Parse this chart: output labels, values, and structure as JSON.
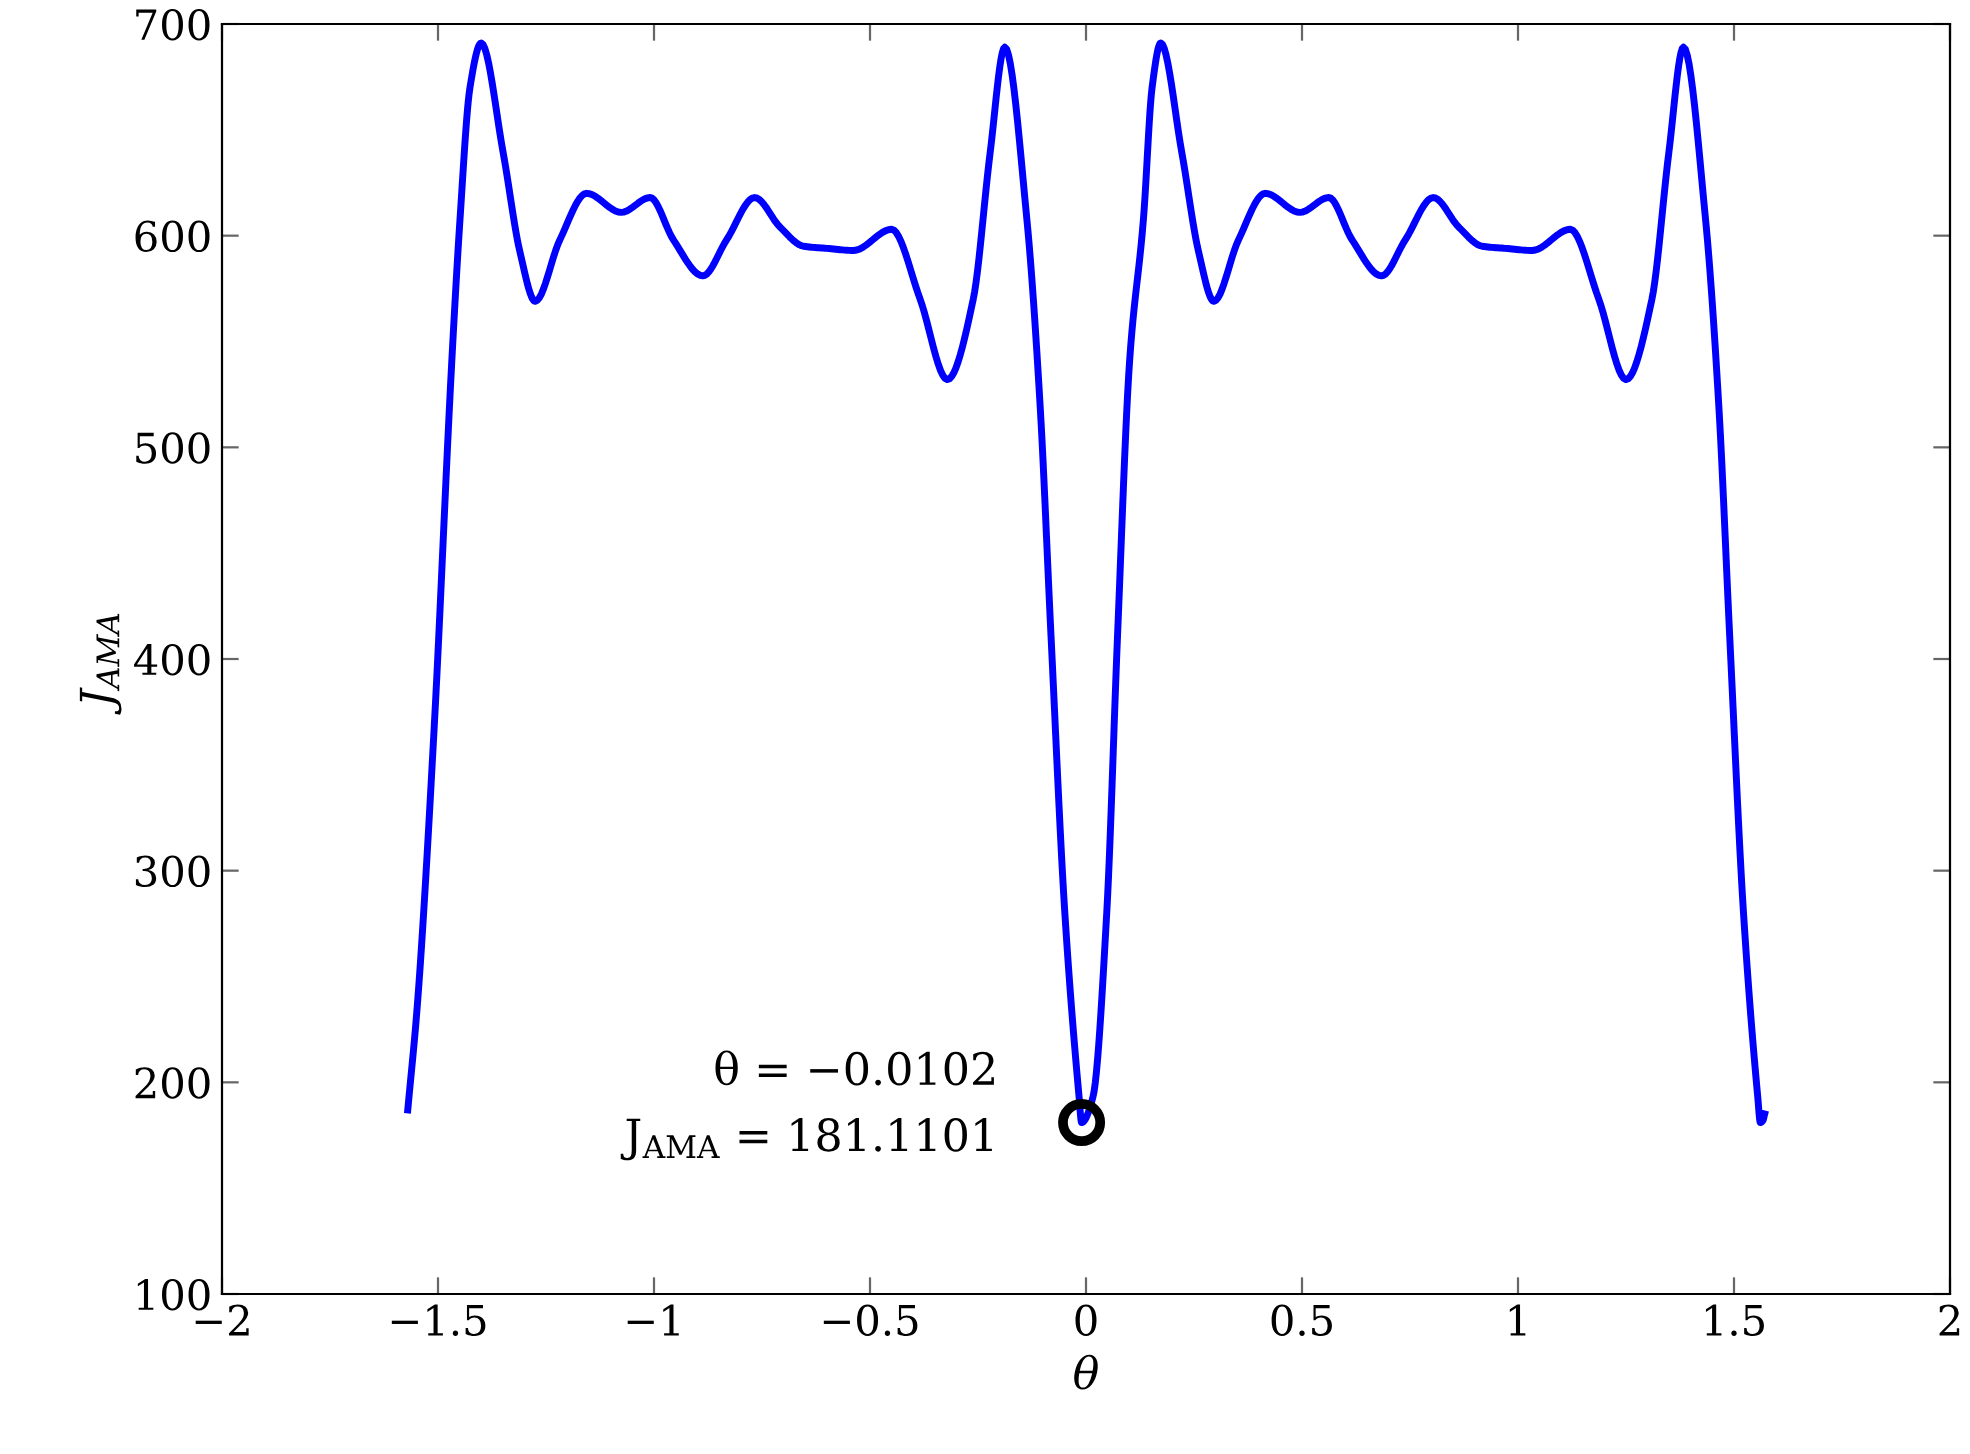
{
  "chart_data": {
    "type": "line",
    "xlabel": "θ",
    "ylabel": "J$_{AMA}$",
    "xlim": [
      -2,
      2
    ],
    "ylim": [
      100,
      700
    ],
    "xticks": [
      {
        "value": -2,
        "label": "−2"
      },
      {
        "value": -1.5,
        "label": "−1.5"
      },
      {
        "value": -1,
        "label": "−1"
      },
      {
        "value": -0.5,
        "label": "−0.5"
      },
      0,
      0.5,
      1,
      1.5,
      2
    ],
    "yticks": [
      100,
      200,
      300,
      400,
      500,
      600,
      700
    ],
    "grid": false,
    "series": [
      {
        "color": "#0000ff",
        "line_style": "solid",
        "x": [
          -1.57,
          -1.548,
          -1.509,
          -1.468,
          -1.449,
          -1.426,
          -1.4,
          -1.349,
          -1.31,
          -1.275,
          -1.218,
          -1.156,
          -1.076,
          -1.009,
          -0.955,
          -0.887,
          -0.832,
          -0.767,
          -0.708,
          -0.654,
          -0.6,
          -0.538,
          -0.45,
          -0.384,
          -0.321,
          -0.261,
          -0.222,
          -0.188,
          -0.137,
          -0.106,
          -0.081,
          -0.049,
          -0.016,
          -0.0102,
          0.016,
          0.048,
          0.073,
          0.101,
          0.133,
          0.153,
          0.173,
          0.222,
          0.261,
          0.296,
          0.353,
          0.415,
          0.495,
          0.562,
          0.616,
          0.684,
          0.739,
          0.804,
          0.863,
          0.917,
          0.971,
          1.033,
          1.121,
          1.187,
          1.25,
          1.31,
          1.349,
          1.383,
          1.434,
          1.465,
          1.49,
          1.522,
          1.555,
          1.561,
          1.567,
          1.571
        ],
        "values": [
          187,
          236,
          367,
          541,
          608,
          670,
          691,
          639,
          592,
          569,
          598,
          620,
          611,
          618,
          598,
          581,
          598,
          618,
          604,
          595,
          594,
          593,
          603,
          570,
          532,
          570,
          639,
          689,
          608,
          519,
          411,
          280,
          193,
          181,
          193,
          280,
          411,
          541,
          608,
          670,
          691,
          639,
          592,
          569,
          598,
          620,
          611,
          618,
          598,
          581,
          598,
          618,
          604,
          595,
          594,
          593,
          603,
          570,
          532,
          570,
          639,
          689,
          608,
          519,
          411,
          280,
          193,
          181,
          182,
          185
        ]
      },
      {
        "type": "scatter",
        "color": "#000000",
        "marker": "circle",
        "x": [
          -0.0102
        ],
        "values": [
          181
        ]
      }
    ],
    "annotations": [
      {
        "text": "θ = −0.0102",
        "x": -0.0102,
        "y": 181
      },
      {
        "text": "J$_{AMA}$ = 181.1101",
        "x": -0.0102,
        "y": 181
      }
    ]
  }
}
